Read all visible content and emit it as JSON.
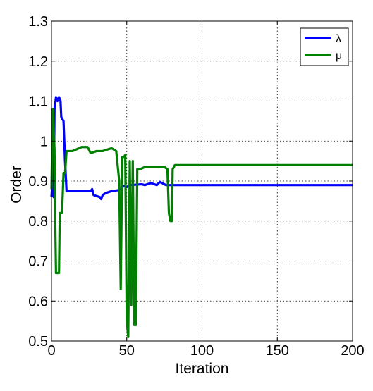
{
  "chart_data": {
    "type": "line",
    "title": "",
    "xlabel": "Iteration",
    "ylabel": "Order",
    "xlim": [
      0,
      200
    ],
    "ylim": [
      0.5,
      1.3
    ],
    "xticks": [
      0,
      50,
      100,
      150,
      200
    ],
    "xtick_labels": [
      "0",
      "50",
      "100",
      "150",
      "200"
    ],
    "yticks": [
      0.5,
      0.6,
      0.7,
      0.8,
      0.9,
      1.0,
      1.1,
      1.2,
      1.3
    ],
    "ytick_labels": [
      "0.5",
      "0.6",
      "0.7",
      "0.8",
      "0.9",
      "1",
      "1.1",
      "1.2",
      "1.3"
    ],
    "grid": true,
    "legend_position": "top-right",
    "series": [
      {
        "name": "λ",
        "color": "#0000ff",
        "points": [
          [
            0,
            0.86
          ],
          [
            1,
            0.92
          ],
          [
            1.5,
            0.86
          ],
          [
            2,
            1.08
          ],
          [
            3,
            1.11
          ],
          [
            4,
            1.1
          ],
          [
            5,
            1.11
          ],
          [
            6,
            1.1
          ],
          [
            6.5,
            1.06
          ],
          [
            8,
            1.05
          ],
          [
            9,
            0.95
          ],
          [
            10,
            0.875
          ],
          [
            20,
            0.875
          ],
          [
            26,
            0.875
          ],
          [
            27,
            0.88
          ],
          [
            28,
            0.865
          ],
          [
            32,
            0.86
          ],
          [
            33,
            0.855
          ],
          [
            34,
            0.865
          ],
          [
            36,
            0.87
          ],
          [
            40,
            0.875
          ],
          [
            44,
            0.877
          ],
          [
            46,
            0.88
          ],
          [
            48,
            0.888
          ],
          [
            50,
            0.885
          ],
          [
            52,
            0.89
          ],
          [
            60,
            0.892
          ],
          [
            62,
            0.89
          ],
          [
            66,
            0.895
          ],
          [
            70,
            0.89
          ],
          [
            72,
            0.898
          ],
          [
            76,
            0.89
          ],
          [
            80,
            0.89
          ],
          [
            82,
            0.89
          ],
          [
            200,
            0.89
          ]
        ]
      },
      {
        "name": "μ",
        "color": "#008000",
        "points": [
          [
            0,
            0.88
          ],
          [
            0.5,
            1.0
          ],
          [
            1,
            1.08
          ],
          [
            2,
            0.98
          ],
          [
            2.5,
            0.8
          ],
          [
            3,
            0.67
          ],
          [
            4,
            0.67
          ],
          [
            5,
            0.67
          ],
          [
            5.5,
            0.82
          ],
          [
            7,
            0.82
          ],
          [
            8,
            0.92
          ],
          [
            9,
            0.92
          ],
          [
            10,
            0.975
          ],
          [
            14,
            0.975
          ],
          [
            17,
            0.98
          ],
          [
            20,
            0.985
          ],
          [
            24,
            0.985
          ],
          [
            26,
            0.97
          ],
          [
            30,
            0.975
          ],
          [
            34,
            0.975
          ],
          [
            38,
            0.98
          ],
          [
            40,
            0.982
          ],
          [
            43,
            0.975
          ],
          [
            45,
            0.9
          ],
          [
            46,
            0.63
          ],
          [
            47,
            0.96
          ],
          [
            48,
            0.96
          ],
          [
            49,
            0.965
          ],
          [
            50,
            0.55
          ],
          [
            51,
            0.51
          ],
          [
            52,
            0.95
          ],
          [
            53,
            0.59
          ],
          [
            54,
            0.95
          ],
          [
            55,
            0.54
          ],
          [
            56,
            0.54
          ],
          [
            57,
            0.93
          ],
          [
            59,
            0.93
          ],
          [
            62,
            0.935
          ],
          [
            70,
            0.935
          ],
          [
            75,
            0.935
          ],
          [
            77,
            0.93
          ],
          [
            78,
            0.82
          ],
          [
            79,
            0.8
          ],
          [
            80,
            0.8
          ],
          [
            80.5,
            0.93
          ],
          [
            82,
            0.94
          ],
          [
            84,
            0.94
          ],
          [
            200,
            0.94
          ]
        ]
      }
    ]
  }
}
